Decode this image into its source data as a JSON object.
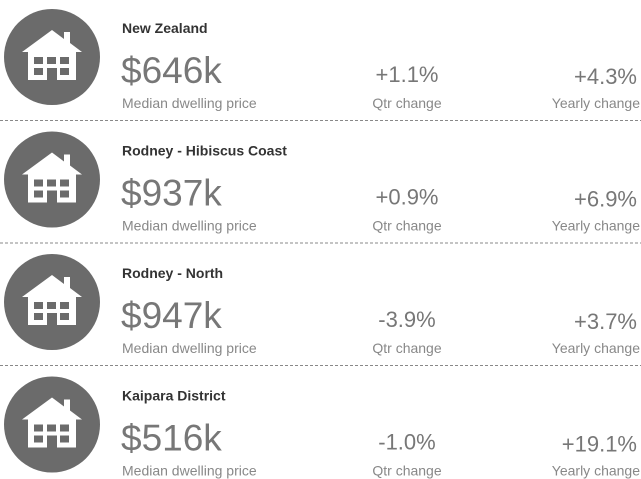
{
  "rows": [
    {
      "region": "New Zealand",
      "price": "$646k",
      "price_label": "Median dwelling price",
      "qtr": "+1.1%",
      "qtr_label": "Qtr change",
      "yearly": "+4.3%",
      "yearly_label": "Yearly change"
    },
    {
      "region": "Rodney - Hibiscus Coast",
      "price": "$937k",
      "price_label": "Median dwelling price",
      "qtr": "+0.9%",
      "qtr_label": "Qtr change",
      "yearly": "+6.9%",
      "yearly_label": "Yearly change"
    },
    {
      "region": "Rodney - North",
      "price": "$947k",
      "price_label": "Median dwelling price",
      "qtr": "-3.9%",
      "qtr_label": "Qtr change",
      "yearly": "+3.7%",
      "yearly_label": "Yearly change"
    },
    {
      "region": "Kaipara District",
      "price": "$516k",
      "price_label": "Median dwelling price",
      "qtr": "-1.0%",
      "qtr_label": "Qtr change",
      "yearly": "+19.1%",
      "yearly_label": "Yearly change"
    }
  ]
}
